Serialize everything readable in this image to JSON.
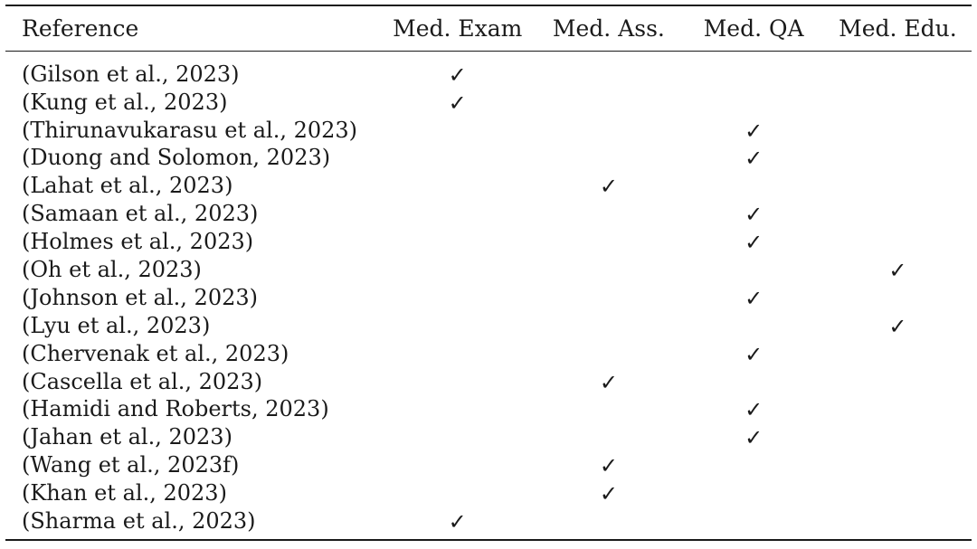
{
  "table": {
    "headers": {
      "reference": "Reference",
      "col1": "Med. Exam",
      "col2": "Med. Ass.",
      "col3": "Med. QA",
      "col4": "Med. Edu."
    },
    "check_symbol": "✓",
    "rows": [
      {
        "reference": "(Gilson et al., 2023)",
        "col1": "✓",
        "col2": "",
        "col3": "",
        "col4": ""
      },
      {
        "reference": "(Kung et al., 2023)",
        "col1": "✓",
        "col2": "",
        "col3": "",
        "col4": ""
      },
      {
        "reference": "(Thirunavukarasu et al., 2023)",
        "col1": "",
        "col2": "",
        "col3": "✓",
        "col4": ""
      },
      {
        "reference": "(Duong and Solomon, 2023)",
        "col1": "",
        "col2": "",
        "col3": "✓",
        "col4": ""
      },
      {
        "reference": "(Lahat et al., 2023)",
        "col1": "",
        "col2": "✓",
        "col3": "",
        "col4": ""
      },
      {
        "reference": "(Samaan et al., 2023)",
        "col1": "",
        "col2": "",
        "col3": "✓",
        "col4": ""
      },
      {
        "reference": "(Holmes et al., 2023)",
        "col1": "",
        "col2": "",
        "col3": "✓",
        "col4": ""
      },
      {
        "reference": "(Oh et al., 2023)",
        "col1": "",
        "col2": "",
        "col3": "",
        "col4": "✓"
      },
      {
        "reference": "(Johnson et al., 2023)",
        "col1": "",
        "col2": "",
        "col3": "✓",
        "col4": ""
      },
      {
        "reference": "(Lyu et al., 2023)",
        "col1": "",
        "col2": "",
        "col3": "",
        "col4": "✓"
      },
      {
        "reference": "(Chervenak et al., 2023)",
        "col1": "",
        "col2": "",
        "col3": "✓",
        "col4": ""
      },
      {
        "reference": "(Cascella et al., 2023)",
        "col1": "",
        "col2": "✓",
        "col3": "",
        "col4": ""
      },
      {
        "reference": "(Hamidi and Roberts, 2023)",
        "col1": "",
        "col2": "",
        "col3": "✓",
        "col4": ""
      },
      {
        "reference": "(Jahan et al., 2023)",
        "col1": "",
        "col2": "",
        "col3": "✓",
        "col4": ""
      },
      {
        "reference": "(Wang et al., 2023f)",
        "col1": "",
        "col2": "✓",
        "col3": "",
        "col4": ""
      },
      {
        "reference": "(Khan et al., 2023)",
        "col1": "",
        "col2": "✓",
        "col3": "",
        "col4": ""
      },
      {
        "reference": "(Sharma et al., 2023)",
        "col1": "✓",
        "col2": "",
        "col3": "",
        "col4": ""
      }
    ]
  }
}
